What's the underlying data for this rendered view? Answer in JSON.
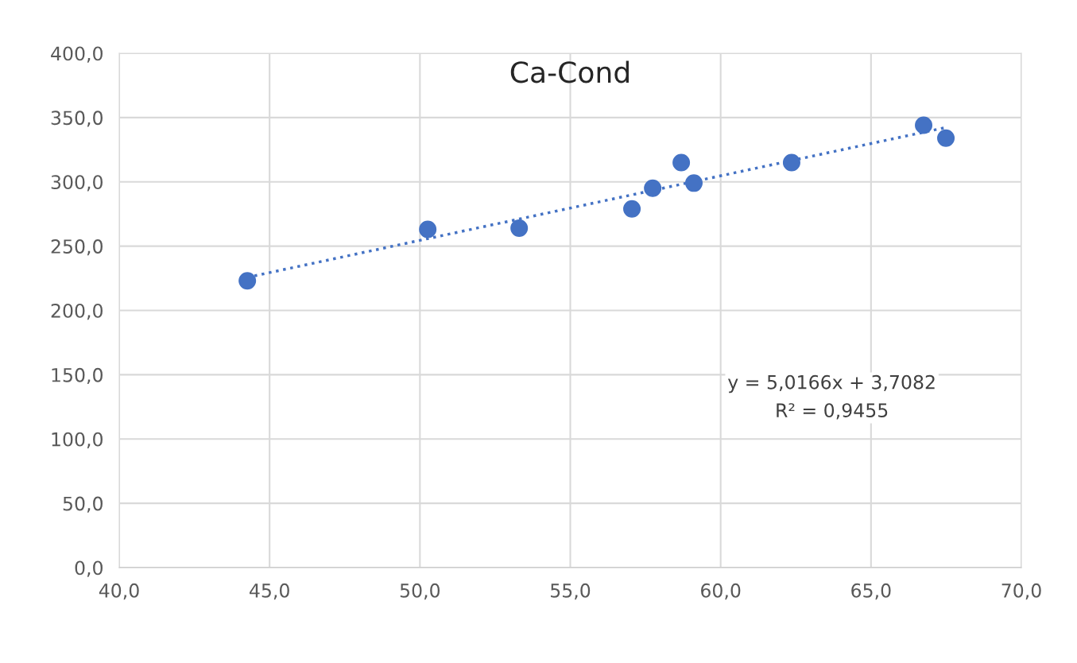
{
  "chart_data": {
    "type": "scatter",
    "title": "Ca-Cond",
    "series": [
      {
        "color": "#4472c4",
        "marker": "circle",
        "x": [
          44.26,
          50.26,
          53.3,
          57.05,
          57.74,
          58.69,
          59.11,
          62.36,
          66.75,
          67.49
        ],
        "values": [
          223,
          263,
          264,
          279,
          295,
          315,
          299,
          315,
          344,
          334
        ]
      },
      {
        "type": "line",
        "color": "#4472c4",
        "line_style": "dotted",
        "marker": "none",
        "x": [
          44.26,
          67.49
        ],
        "values": [
          225.7,
          342.3
        ]
      }
    ],
    "annotations": [
      "y = 5,0166x + 3,7082\nR² = 0,9455"
    ],
    "xlim": [
      40,
      70
    ],
    "ylim": [
      0,
      400
    ],
    "xticks": [
      {
        "value": 40,
        "label": "40,0"
      },
      {
        "value": 45,
        "label": "45,0"
      },
      {
        "value": 50,
        "label": "50,0"
      },
      {
        "value": 55,
        "label": "55,0"
      },
      {
        "value": 60,
        "label": "60,0"
      },
      {
        "value": 65,
        "label": "65,0"
      },
      {
        "value": 70,
        "label": "70,0"
      }
    ],
    "yticks": [
      {
        "value": 0,
        "label": "0,0"
      },
      {
        "value": 50,
        "label": "50,0"
      },
      {
        "value": 100,
        "label": "100,0"
      },
      {
        "value": 150,
        "label": "150,0"
      },
      {
        "value": 200,
        "label": "200,0"
      },
      {
        "value": 250,
        "label": "250,0"
      },
      {
        "value": 300,
        "label": "300,0"
      },
      {
        "value": 350,
        "label": "350,0"
      },
      {
        "value": 400,
        "label": "400,0"
      }
    ],
    "grid": true
  }
}
